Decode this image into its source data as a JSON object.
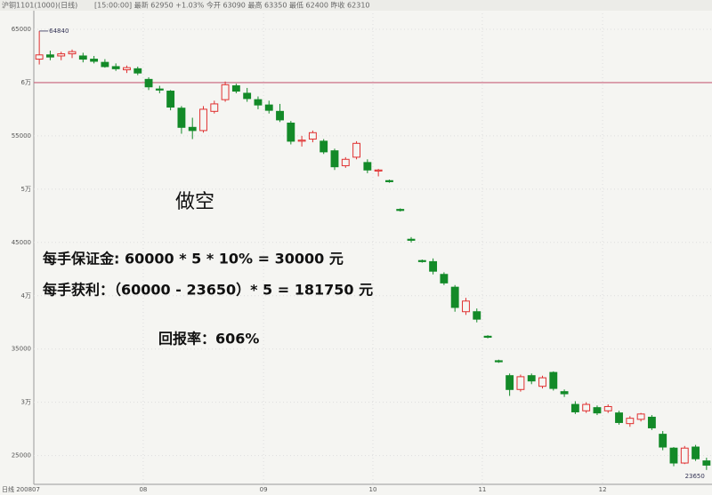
{
  "chart_data": {
    "type": "candlestick",
    "title": "沪铜1101(1000)(日线)",
    "subtitle": "[15:00:00] 最新 62950 +1.03% 今开 63090 最高 63350 最低 62400 昨收 62310",
    "xlabel": "日线 200807",
    "categories": [
      null,
      null,
      null,
      null,
      null,
      null,
      null,
      null,
      null,
      null,
      "08",
      null,
      null,
      null,
      null,
      null,
      null,
      null,
      null,
      null,
      null,
      "09",
      null,
      null,
      null,
      null,
      null,
      null,
      null,
      null,
      null,
      "10",
      null,
      null,
      null,
      null,
      null,
      null,
      null,
      null,
      null,
      "11",
      null,
      null,
      null,
      null,
      null,
      null,
      null,
      null,
      null,
      null,
      "12",
      null,
      null,
      null,
      null,
      null,
      null,
      null,
      null,
      null
    ],
    "open": [
      62200,
      62600,
      62500,
      62700,
      62500,
      62200,
      61900,
      61500,
      61200,
      61300,
      60300,
      59400,
      59200,
      57600,
      55800,
      55500,
      57300,
      58400,
      59700,
      59000,
      58400,
      57900,
      57300,
      56200,
      54500,
      54700,
      54500,
      53600,
      52200,
      53000,
      52500,
      51700,
      50800,
      48100,
      45300,
      43300,
      43200,
      42000,
      40800,
      38500,
      38500,
      36200,
      33900,
      32500,
      31200,
      32500,
      31500,
      32800,
      31000,
      29800,
      29200,
      29500,
      29200,
      29000,
      28000,
      28400,
      28600,
      27000,
      25700,
      24300,
      25800,
      24500
    ],
    "high": [
      64840,
      63000,
      62900,
      63100,
      62800,
      62500,
      62200,
      61800,
      61600,
      61500,
      60500,
      59700,
      59300,
      57800,
      56700,
      57800,
      58300,
      60100,
      59900,
      59500,
      58700,
      58300,
      58000,
      56400,
      55000,
      55500,
      54700,
      53800,
      53000,
      54500,
      52800,
      51900,
      50900,
      48200,
      45500,
      43400,
      43500,
      42200,
      41000,
      39800,
      38800,
      36300,
      34000,
      32700,
      32600,
      32700,
      32500,
      32900,
      31200,
      30100,
      30000,
      29700,
      29800,
      29200,
      28700,
      29000,
      28800,
      27300,
      25800,
      25900,
      26000,
      24800
    ],
    "low": [
      61700,
      62100,
      62100,
      62300,
      61900,
      61800,
      61400,
      61100,
      60900,
      60700,
      59300,
      59000,
      57400,
      55200,
      54700,
      55300,
      57100,
      58200,
      59000,
      58200,
      57500,
      57100,
      56300,
      54200,
      54000,
      54400,
      53300,
      51800,
      52000,
      52800,
      51500,
      51200,
      50600,
      47900,
      45000,
      43100,
      42000,
      41000,
      38500,
      38200,
      37500,
      36000,
      33700,
      30600,
      31000,
      31700,
      31300,
      31100,
      30500,
      28900,
      29000,
      28800,
      29000,
      27900,
      27700,
      28200,
      27400,
      25500,
      24000,
      24200,
      24500,
      23650
    ],
    "close": [
      62600,
      62400,
      62700,
      62900,
      62200,
      62000,
      61500,
      61300,
      61400,
      60900,
      59600,
      59300,
      57700,
      55800,
      55500,
      57500,
      58000,
      59800,
      59200,
      58500,
      57900,
      57400,
      56500,
      54500,
      54600,
      55300,
      53500,
      52100,
      52800,
      54300,
      51800,
      51800,
      50700,
      48000,
      45200,
      43200,
      42300,
      41200,
      38900,
      39500,
      37800,
      36100,
      33800,
      31200,
      32400,
      32000,
      32300,
      31300,
      30800,
      29100,
      29800,
      29000,
      29600,
      28100,
      28500,
      28900,
      27600,
      25800,
      24300,
      25700,
      24700,
      24100
    ],
    "up_color": "#e03030",
    "down_color": "#138a28",
    "ylim": [
      22300,
      66500
    ],
    "yticks": [
      65000,
      {
        "value": 60000,
        "label": "6万"
      },
      55000,
      {
        "value": 50000,
        "label": "5万"
      },
      45000,
      {
        "value": 40000,
        "label": "4万"
      },
      35000,
      {
        "value": 30000,
        "label": "3万"
      },
      25000
    ],
    "grid": true,
    "hline": {
      "value": 60000,
      "color": "#c8607a"
    },
    "annotations": [
      "做空",
      "每手保证金: 60000 * 5 * 10% = 30000 元",
      "每手获利：（60000 - 23650）* 5 = 181750 元",
      "回报率：606%"
    ]
  }
}
